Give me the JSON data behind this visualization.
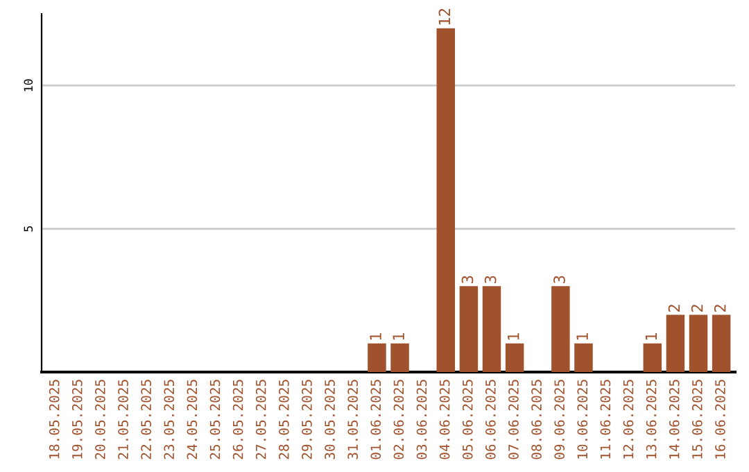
{
  "chart_data": {
    "type": "bar",
    "categories": [
      "18.05.2025",
      "19.05.2025",
      "20.05.2025",
      "21.05.2025",
      "22.05.2025",
      "23.05.2025",
      "24.05.2025",
      "25.05.2025",
      "26.05.2025",
      "27.05.2025",
      "28.05.2025",
      "29.05.2025",
      "30.05.2025",
      "31.05.2025",
      "01.06.2025",
      "02.06.2025",
      "03.06.2025",
      "04.06.2025",
      "05.06.2025",
      "06.06.2025",
      "07.06.2025",
      "08.06.2025",
      "09.06.2025",
      "10.06.2025",
      "11.06.2025",
      "12.06.2025",
      "13.06.2025",
      "14.06.2025",
      "15.06.2025",
      "16.06.2025"
    ],
    "values": [
      0,
      0,
      0,
      0,
      0,
      0,
      0,
      0,
      0,
      0,
      0,
      0,
      0,
      0,
      1,
      1,
      0,
      12,
      3,
      3,
      1,
      0,
      3,
      1,
      0,
      0,
      1,
      2,
      2,
      2
    ],
    "value_labels": [
      null,
      null,
      null,
      null,
      null,
      null,
      null,
      null,
      null,
      null,
      null,
      null,
      null,
      null,
      "1",
      "1",
      null,
      "12",
      "3",
      "3",
      "1",
      null,
      "3",
      "1",
      null,
      null,
      "1",
      "2",
      "2",
      "2"
    ],
    "color": "#a0522d",
    "ylim": [
      0,
      12.5
    ],
    "yticks": [
      5,
      10
    ],
    "grid": "y"
  }
}
